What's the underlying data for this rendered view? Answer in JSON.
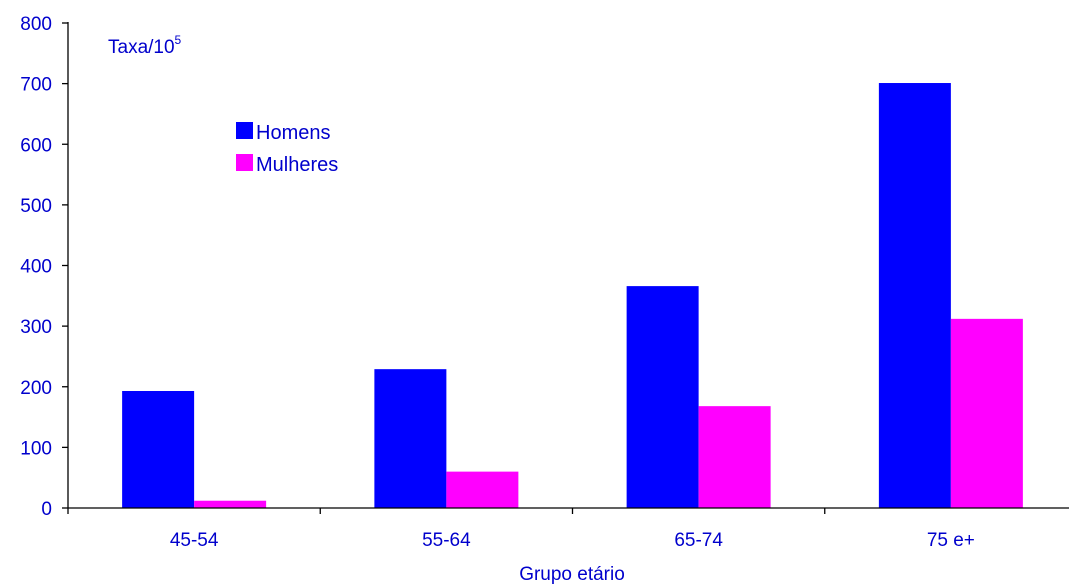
{
  "colors": {
    "text": "#0000cc",
    "axis": "#000000",
    "homens": "#0000ff",
    "mulheres": "#ff00ff"
  },
  "chart_data": {
    "type": "bar",
    "categories": [
      "45-54",
      "55-64",
      "65-74",
      "75 e+"
    ],
    "series": [
      {
        "name": "Homens",
        "values": [
          193,
          229,
          366,
          701
        ],
        "color": "#0000ff"
      },
      {
        "name": "Mulheres",
        "values": [
          12,
          60,
          168,
          312
        ],
        "color": "#ff00ff"
      }
    ],
    "ylabel": {
      "text": "Taxa/10",
      "superscript": "5"
    },
    "xlabel": "Grupo etário",
    "ylim": [
      0,
      800
    ],
    "yticks": [
      "0",
      "100",
      "200",
      "300",
      "400",
      "500",
      "600",
      "700",
      "800"
    ],
    "grid": false,
    "legend_position": "top-left"
  }
}
